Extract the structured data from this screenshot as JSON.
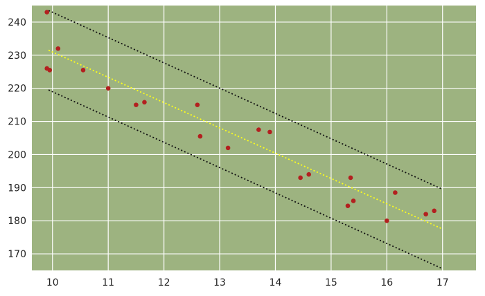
{
  "colors": {
    "plot_background": "#9db380",
    "grid": "#ffffff",
    "points": "#b3201f",
    "fit_line": "#ffff1a",
    "bound_lines": "#111111",
    "tick_text": "#222222"
  },
  "chart_data": {
    "type": "scatter",
    "title": "",
    "xlabel": "",
    "ylabel": "",
    "xlim": [
      9.63,
      17.6
    ],
    "ylim": [
      165,
      245
    ],
    "grid": true,
    "x_ticks": [
      10,
      11,
      12,
      13,
      14,
      15,
      16,
      17
    ],
    "x_tick_labels": [
      "10",
      "11",
      "12",
      "13",
      "14",
      "15",
      "16",
      "17"
    ],
    "y_ticks": [
      170,
      180,
      190,
      200,
      210,
      220,
      230,
      240
    ],
    "y_tick_labels": [
      "170",
      "180",
      "190",
      "200",
      "210",
      "220",
      "230",
      "240"
    ],
    "points": [
      {
        "x": 9.9,
        "y": 243
      },
      {
        "x": 9.9,
        "y": 226
      },
      {
        "x": 9.95,
        "y": 225.5
      },
      {
        "x": 10.1,
        "y": 232
      },
      {
        "x": 10.55,
        "y": 225.5
      },
      {
        "x": 11.0,
        "y": 220
      },
      {
        "x": 11.5,
        "y": 215
      },
      {
        "x": 11.65,
        "y": 215.8
      },
      {
        "x": 12.6,
        "y": 215
      },
      {
        "x": 12.65,
        "y": 205.5
      },
      {
        "x": 13.15,
        "y": 202
      },
      {
        "x": 13.7,
        "y": 207.5
      },
      {
        "x": 13.9,
        "y": 206.8
      },
      {
        "x": 14.45,
        "y": 193
      },
      {
        "x": 14.6,
        "y": 194
      },
      {
        "x": 15.3,
        "y": 184.5
      },
      {
        "x": 15.35,
        "y": 193
      },
      {
        "x": 15.4,
        "y": 186
      },
      {
        "x": 16.0,
        "y": 180
      },
      {
        "x": 16.15,
        "y": 188.5
      },
      {
        "x": 16.7,
        "y": 182
      },
      {
        "x": 16.85,
        "y": 183
      }
    ],
    "fit_line": {
      "x": [
        9.93,
        17.0
      ],
      "y": [
        231.5,
        177.5
      ]
    },
    "upper_bound": {
      "x": [
        9.93,
        17.0
      ],
      "y": [
        243.5,
        189.5
      ]
    },
    "lower_bound": {
      "x": [
        9.93,
        17.0
      ],
      "y": [
        219.5,
        165.5
      ]
    }
  }
}
